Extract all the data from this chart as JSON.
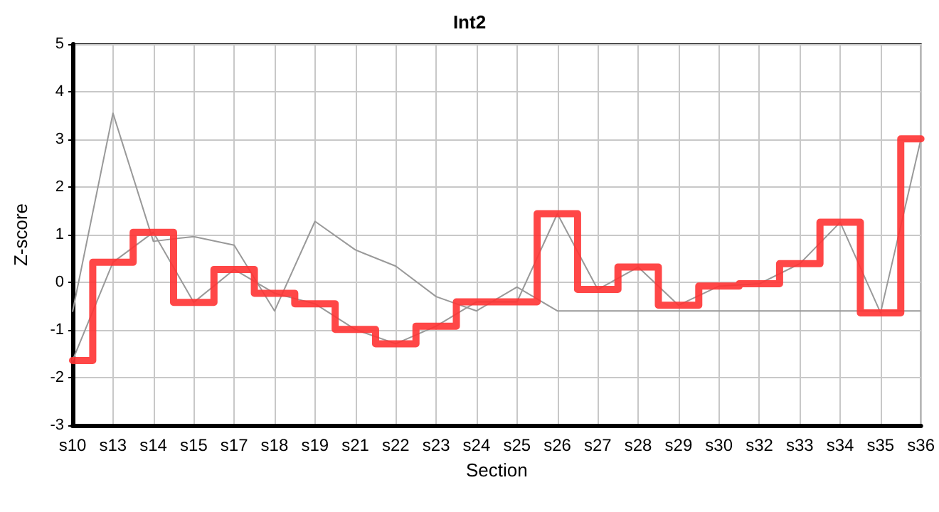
{
  "chart_data": {
    "type": "line",
    "title": "Int2",
    "xlabel": "Section",
    "ylabel": "Z-score",
    "categories": [
      "s10",
      "s13",
      "s14",
      "s15",
      "s17",
      "s18",
      "s19",
      "s21",
      "s22",
      "s23",
      "s24",
      "s25",
      "s26",
      "s27",
      "s28",
      "s29",
      "s30",
      "s32",
      "s33",
      "s34",
      "s35",
      "s36"
    ],
    "series": [
      {
        "color": "#999999",
        "values": [
          -0.62,
          3.55,
          0.86,
          0.96,
          0.78,
          -0.6,
          1.28,
          0.68,
          0.34,
          -0.3,
          -0.6,
          -0.1,
          -0.6,
          -0.6,
          -0.6,
          -0.6,
          -0.6,
          -0.6,
          -0.6,
          -0.6,
          -0.6,
          -0.6
        ]
      },
      {
        "color": "#999999",
        "values": [
          -1.64,
          0.42,
          1.05,
          -0.42,
          0.27,
          -0.23,
          -0.45,
          -0.99,
          -1.29,
          -0.92,
          -0.41,
          -0.41,
          1.44,
          -0.15,
          0.32,
          -0.48,
          -0.08,
          -0.03,
          0.39,
          1.26,
          -0.64,
          3.01
        ]
      },
      {
        "type": "step",
        "color": "#ff3333",
        "values": [
          -1.64,
          0.42,
          1.05,
          -0.42,
          0.27,
          -0.23,
          -0.45,
          -0.99,
          -1.29,
          -0.92,
          -0.41,
          -0.41,
          1.44,
          -0.15,
          0.32,
          -0.48,
          -0.08,
          -0.03,
          0.39,
          1.26,
          -0.64,
          3.01
        ]
      }
    ],
    "ylim": [
      -3,
      5
    ],
    "yticks": [
      -3,
      -2,
      -1,
      0,
      1,
      2,
      3,
      4,
      5
    ],
    "grid": true,
    "marker": "none"
  }
}
